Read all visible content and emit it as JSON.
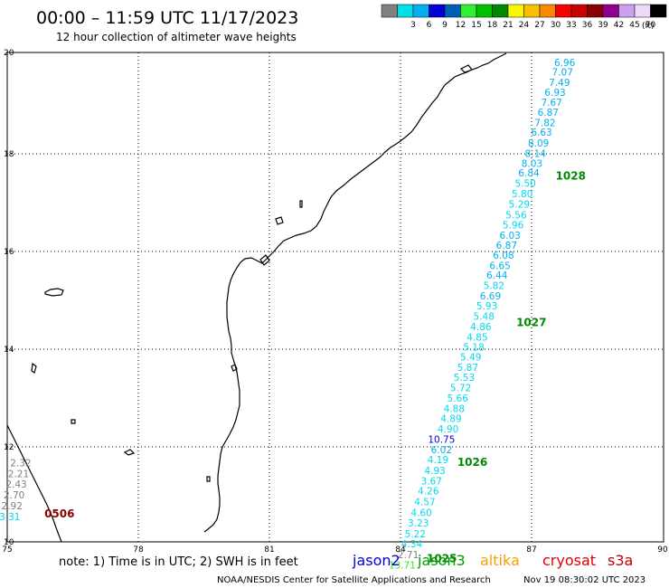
{
  "header": {
    "title": "00:00 – 11:59 UTC 11/17/2023",
    "subtitle": "12 hour collection of altimeter wave heights",
    "legend_unit": "(ft)",
    "legend": [
      {
        "color": "#808080",
        "label": ""
      },
      {
        "color": "#00e0e8",
        "label": "3"
      },
      {
        "color": "#00b0f0",
        "label": "6"
      },
      {
        "color": "#0000d8",
        "label": "9"
      },
      {
        "color": "#0060b8",
        "label": "12"
      },
      {
        "color": "#30f030",
        "label": "15"
      },
      {
        "color": "#00c000",
        "label": "18"
      },
      {
        "color": "#008800",
        "label": "21"
      },
      {
        "color": "#f8f800",
        "label": "24"
      },
      {
        "color": "#f8c000",
        "label": "27"
      },
      {
        "color": "#f88800",
        "label": "30"
      },
      {
        "color": "#f80000",
        "label": "33"
      },
      {
        "color": "#c80000",
        "label": "36"
      },
      {
        "color": "#880000",
        "label": "39"
      },
      {
        "color": "#900090",
        "label": "42"
      },
      {
        "color": "#d0a0f0",
        "label": "45"
      },
      {
        "color": "#f0d8f8",
        "label": "70"
      },
      {
        "color": "#000000",
        "label": ""
      }
    ]
  },
  "axes": {
    "x_ticks": [
      "75",
      "78",
      "81",
      "84",
      "87",
      "90"
    ],
    "y_ticks": [
      "20",
      "18",
      "16",
      "14",
      "12",
      "10"
    ]
  },
  "map_data": {
    "lon_range": [
      75,
      90
    ],
    "lat_range": [
      10,
      20
    ],
    "units": "ft",
    "tracks": [
      {
        "satellite": "east track",
        "points": [
          {
            "lon": 88.0,
            "lat": 19.8,
            "value": "6.96",
            "color": "#00b0f0"
          },
          {
            "lon": 87.95,
            "lat": 19.6,
            "value": "7.07",
            "color": "#00b0f0"
          },
          {
            "lon": 87.88,
            "lat": 19.39,
            "value": "7.49",
            "color": "#00b0f0"
          },
          {
            "lon": 87.78,
            "lat": 19.19,
            "value": "6.93",
            "color": "#00b0f0"
          },
          {
            "lon": 87.7,
            "lat": 18.98,
            "value": "7.67",
            "color": "#00b0f0"
          },
          {
            "lon": 87.62,
            "lat": 18.78,
            "value": "6.87",
            "color": "#00b0f0"
          },
          {
            "lon": 87.55,
            "lat": 18.57,
            "value": "7.82",
            "color": "#00b0f0"
          },
          {
            "lon": 87.47,
            "lat": 18.37,
            "value": "6.63",
            "color": "#00b0f0"
          },
          {
            "lon": 87.4,
            "lat": 18.15,
            "value": "8.09",
            "color": "#00b0f0"
          },
          {
            "lon": 87.33,
            "lat": 17.94,
            "value": "8.14",
            "color": "#00b0f0"
          },
          {
            "lon": 87.25,
            "lat": 17.74,
            "value": "8.03",
            "color": "#00b0f0"
          },
          {
            "lon": 87.18,
            "lat": 17.54,
            "value": "6.84",
            "color": "#00b0f0"
          },
          {
            "lon": 87.1,
            "lat": 17.33,
            "value": "5.50",
            "color": "#00d8f0"
          },
          {
            "lon": 87.03,
            "lat": 17.12,
            "value": "5.80",
            "color": "#00d8f0"
          },
          {
            "lon": 86.96,
            "lat": 16.9,
            "value": "5.29",
            "color": "#00d8f0"
          },
          {
            "lon": 86.89,
            "lat": 16.68,
            "value": "5.56",
            "color": "#00d8f0"
          },
          {
            "lon": 86.82,
            "lat": 16.48,
            "value": "5.96",
            "color": "#00d8f0"
          },
          {
            "lon": 86.75,
            "lat": 16.27,
            "value": "6.03",
            "color": "#00b0f0"
          },
          {
            "lon": 86.67,
            "lat": 16.06,
            "value": "6.87",
            "color": "#00b0f0"
          },
          {
            "lon": 86.6,
            "lat": 15.86,
            "value": "6.08",
            "color": "#00b0f0"
          },
          {
            "lon": 86.52,
            "lat": 15.65,
            "value": "6.65",
            "color": "#00b0f0"
          },
          {
            "lon": 86.45,
            "lat": 15.45,
            "value": "6.44",
            "color": "#00b0f0"
          },
          {
            "lon": 86.38,
            "lat": 15.24,
            "value": "5.82",
            "color": "#00d8f0"
          },
          {
            "lon": 86.3,
            "lat": 15.03,
            "value": "6.69",
            "color": "#00b0f0"
          },
          {
            "lon": 86.22,
            "lat": 14.82,
            "value": "5.93",
            "color": "#00d8f0"
          },
          {
            "lon": 86.15,
            "lat": 14.61,
            "value": "5.48",
            "color": "#00d8f0"
          },
          {
            "lon": 86.08,
            "lat": 14.4,
            "value": "4.86",
            "color": "#00d8f0"
          },
          {
            "lon": 86.0,
            "lat": 14.19,
            "value": "4.85",
            "color": "#00d8f0"
          },
          {
            "lon": 85.92,
            "lat": 13.98,
            "value": "5.18",
            "color": "#00d8f0"
          },
          {
            "lon": 85.85,
            "lat": 13.78,
            "value": "5.49",
            "color": "#00d8f0"
          },
          {
            "lon": 85.78,
            "lat": 13.57,
            "value": "5.87",
            "color": "#00d8f0"
          },
          {
            "lon": 85.7,
            "lat": 13.36,
            "value": "5.53",
            "color": "#00d8f0"
          },
          {
            "lon": 85.62,
            "lat": 13.15,
            "value": "5.72",
            "color": "#00d8f0"
          },
          {
            "lon": 85.55,
            "lat": 12.94,
            "value": "5.66",
            "color": "#00d8f0"
          },
          {
            "lon": 85.47,
            "lat": 12.73,
            "value": "4.88",
            "color": "#00d8f0"
          },
          {
            "lon": 85.4,
            "lat": 12.52,
            "value": "4.89",
            "color": "#00d8f0"
          },
          {
            "lon": 85.33,
            "lat": 12.31,
            "value": "4.90",
            "color": "#00d8f0"
          },
          {
            "lon": 85.25,
            "lat": 12.1,
            "value": "10.75",
            "color": "#0000d8"
          },
          {
            "lon": 85.18,
            "lat": 11.89,
            "value": "6.02",
            "color": "#00b0f0"
          },
          {
            "lon": 85.1,
            "lat": 11.68,
            "value": "4.19",
            "color": "#00d8f0"
          },
          {
            "lon": 85.03,
            "lat": 11.46,
            "value": "4.93",
            "color": "#00d8f0"
          },
          {
            "lon": 84.95,
            "lat": 11.25,
            "value": "3.67",
            "color": "#00d8f0"
          },
          {
            "lon": 84.88,
            "lat": 11.04,
            "value": "4.26",
            "color": "#00d8f0"
          },
          {
            "lon": 84.8,
            "lat": 10.82,
            "value": "4.57",
            "color": "#00d8f0"
          },
          {
            "lon": 84.72,
            "lat": 10.6,
            "value": "4.60",
            "color": "#00d8f0"
          },
          {
            "lon": 84.65,
            "lat": 10.39,
            "value": "3.23",
            "color": "#00d8f0"
          },
          {
            "lon": 84.58,
            "lat": 10.17,
            "value": "5.22",
            "color": "#00d8f0"
          },
          {
            "lon": 84.5,
            "lat": 9.96,
            "value": "4.34",
            "color": "#00d8f0"
          },
          {
            "lon": 84.42,
            "lat": 9.74,
            "value": "2.71",
            "color": "#808080"
          },
          {
            "lon": 84.35,
            "lat": 9.53,
            "value": "13.71",
            "color": "#30f030"
          }
        ]
      },
      {
        "satellite": "west track",
        "points": [
          {
            "lon": 75.55,
            "lat": 11.62,
            "value": "2.32",
            "color": "#808080"
          },
          {
            "lon": 75.5,
            "lat": 11.4,
            "value": "2.21",
            "color": "#808080"
          },
          {
            "lon": 75.45,
            "lat": 11.18,
            "value": "2.43",
            "color": "#808080"
          },
          {
            "lon": 75.4,
            "lat": 10.96,
            "value": "2.70",
            "color": "#808080"
          },
          {
            "lon": 75.35,
            "lat": 10.74,
            "value": "2.92",
            "color": "#808080"
          },
          {
            "lon": 75.3,
            "lat": 10.52,
            "value": "3.31",
            "color": "#00d8f0"
          }
        ]
      }
    ],
    "pass_labels": [
      {
        "lon": 87.55,
        "lat": 17.4,
        "text": "1028",
        "color": "#008800"
      },
      {
        "lon": 86.65,
        "lat": 14.41,
        "text": "1027",
        "color": "#008800"
      },
      {
        "lon": 85.3,
        "lat": 11.55,
        "text": "1026",
        "color": "#008800"
      },
      {
        "lon": 84.6,
        "lat": 9.58,
        "text": "1025",
        "color": "#008800"
      },
      {
        "lon": 75.85,
        "lat": 10.5,
        "text": "0506",
        "color": "#880000"
      }
    ]
  },
  "footer": {
    "note": "note:  1) Time is in UTC;  2) SWH is in feet",
    "satellites": [
      {
        "name": "jason2",
        "color": "#0000d8"
      },
      {
        "name": "jason3",
        "color": "#00a000"
      },
      {
        "name": "altika",
        "color": "#f8a000"
      },
      {
        "name": "cryosat",
        "color": "#e00000"
      },
      {
        "name": "s3a",
        "color": "#c00000"
      }
    ],
    "credit": "NOAA/NESDIS Center for Satellite Applications and Research",
    "timestamp": "Nov 19 08:30:02 UTC 2023"
  }
}
